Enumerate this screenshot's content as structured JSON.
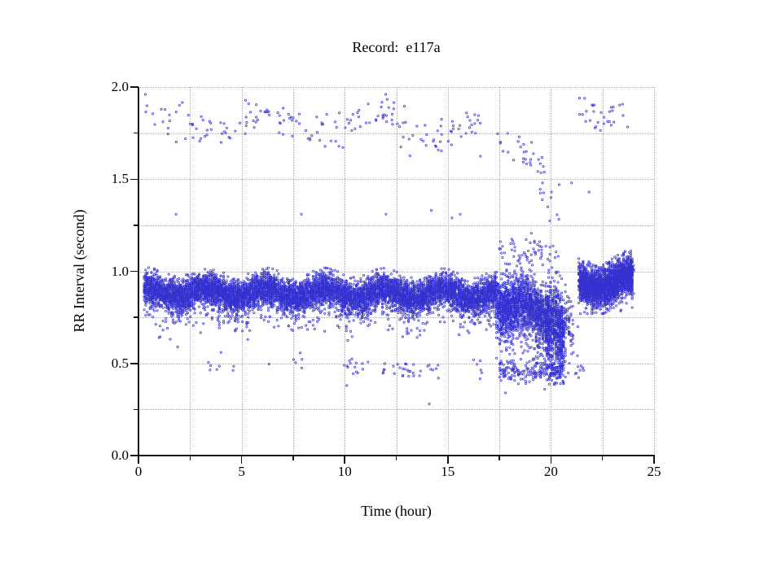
{
  "chart_data": {
    "type": "scatter",
    "title": "Record:  e117a",
    "xlabel": "Time (hour)",
    "ylabel": "RR Interval (second)",
    "xlim": [
      0,
      25
    ],
    "ylim": [
      0.0,
      2.0
    ],
    "grid": "dotted gray at every 2.5 h and 0.25 s",
    "legend": "none",
    "marker": {
      "shape": "open-circle",
      "color": "#3431d0",
      "radius_px": 1.15
    },
    "x_axis": {
      "major_ticks": [
        {
          "value": 0,
          "label": "0"
        },
        {
          "value": 5,
          "label": "5"
        },
        {
          "value": 10,
          "label": "10"
        },
        {
          "value": 15,
          "label": "15"
        },
        {
          "value": 20,
          "label": "20"
        },
        {
          "value": 25,
          "label": "25"
        }
      ],
      "minor_ticks": [
        2.5,
        7.5,
        12.5,
        17.5,
        22.5
      ]
    },
    "y_axis": {
      "major_ticks": [
        {
          "value": 0,
          "label": "0.0"
        },
        {
          "value": 0.5,
          "label": "0.5"
        },
        {
          "value": 1,
          "label": "1.0"
        },
        {
          "value": 1.5,
          "label": "1.5"
        },
        {
          "value": 2,
          "label": "2.0"
        }
      ],
      "minor_ticks": [
        0.25,
        0.75,
        1.25,
        1.75
      ]
    },
    "segments": [
      {
        "name": "main-band",
        "t": [
          0.28,
          17.35
        ],
        "n": 9000,
        "yc": [
          0.885,
          0.875
        ],
        "wave": [
          0.025,
          2.2,
          0.5
        ],
        "sigma": 0.042,
        "tail": {
          "frac": 0.045,
          "range": [
            -0.17,
            -0.05
          ]
        },
        "clip": [
          0.62,
          1.08
        ],
        "quant": 0.07
      },
      {
        "name": "episode-band",
        "t": [
          17.35,
          19.85
        ],
        "n": 1900,
        "yc": [
          0.84,
          0.78
        ],
        "wave": [
          0.03,
          3.1,
          0
        ],
        "sigma": 0.068,
        "tail": {
          "frac": 0.12,
          "range": [
            -0.22,
            -0.04
          ]
        },
        "clip": [
          0.5,
          1.12
        ],
        "quant": 0.08
      },
      {
        "name": "episode-chaos",
        "t": [
          19.8,
          20.68
        ],
        "n": 750,
        "yc": [
          0.74,
          0.66
        ],
        "wave": [
          0.02,
          5,
          1
        ],
        "sigma": 0.105,
        "tail": {
          "frac": 0.1,
          "range": [
            -0.18,
            -0.02
          ]
        },
        "clip": [
          0.39,
          1.1
        ],
        "quant": 0.09
      },
      {
        "name": "episode-upper-scatter",
        "t": [
          17.5,
          20.35
        ],
        "n": 70,
        "yc": [
          1.1,
          1.05
        ],
        "wave": [
          0.02,
          2,
          0
        ],
        "sigma": 0.06,
        "clip": [
          0.97,
          1.24
        ],
        "quant": 0.05
      },
      {
        "name": "gap-sparse",
        "t": [
          20.66,
          21.12
        ],
        "n": 48,
        "yc": [
          0.74,
          0.7
        ],
        "wave": [
          0.02,
          4,
          0
        ],
        "sigma": 0.09,
        "clip": [
          0.54,
          0.9
        ],
        "quant": 0.09
      },
      {
        "name": "evening-band",
        "t": [
          21.36,
          23.98
        ],
        "n": 2500,
        "yc": [
          0.92,
          0.95
        ],
        "wave": [
          0.028,
          2.4,
          1.2
        ],
        "sigma": 0.05,
        "tail": {
          "frac": 0.03,
          "range": [
            -0.12,
            -0.03
          ]
        },
        "clip": [
          0.77,
          1.12
        ],
        "quant": 0.07
      },
      {
        "name": "upper-band-day",
        "t": [
          0.3,
          16.6
        ],
        "n": 185,
        "yc": [
          1.81,
          1.79
        ],
        "wave": [
          0.055,
          1.15,
          0.7
        ],
        "sigma": 0.046,
        "tail": {
          "frac": 0.07,
          "range": [
            -0.14,
            -0.05
          ]
        },
        "clip": [
          1.56,
          1.96
        ]
      },
      {
        "name": "upper-descend-1",
        "t": [
          17.35,
          19.6
        ],
        "n": 26,
        "yc": [
          1.73,
          1.54
        ],
        "wave": [
          0.01,
          1,
          0
        ],
        "sigma": 0.05,
        "clip": [
          1.42,
          1.83
        ]
      },
      {
        "name": "upper-descend-2",
        "t": [
          19.35,
          20.45
        ],
        "n": 14,
        "yc": [
          1.5,
          1.27
        ],
        "wave": [
          0.01,
          1,
          0
        ],
        "sigma": 0.055,
        "clip": [
          1.18,
          1.62
        ]
      },
      {
        "name": "upper-evening-cluster",
        "t": [
          21.25,
          23.72
        ],
        "n": 30,
        "yc": [
          1.85,
          1.84
        ],
        "wave": [
          0.03,
          3,
          0
        ],
        "sigma": 0.05,
        "clip": [
          1.73,
          1.97
        ]
      },
      {
        "name": "low-band-a",
        "t": [
          3.3,
          4.7
        ],
        "n": 7,
        "yc": [
          0.5,
          0.5
        ],
        "wave": [
          0.01,
          1,
          0
        ],
        "sigma": 0.035,
        "clip": [
          0.43,
          0.58
        ]
      },
      {
        "name": "low-band-b",
        "t": [
          6.3,
          8.0
        ],
        "n": 6,
        "yc": [
          0.5,
          0.49
        ],
        "wave": [
          0.01,
          1,
          0
        ],
        "sigma": 0.04,
        "clip": [
          0.42,
          0.58
        ]
      },
      {
        "name": "low-band-c",
        "t": [
          9.95,
          11.2
        ],
        "n": 14,
        "yc": [
          0.485,
          0.48
        ],
        "wave": [
          0.005,
          1,
          0
        ],
        "sigma": 0.022,
        "clip": [
          0.43,
          0.54
        ]
      },
      {
        "name": "low-band-d",
        "t": [
          11.6,
          13.45
        ],
        "n": 22,
        "yc": [
          0.478,
          0.472
        ],
        "wave": [
          0.005,
          1,
          0
        ],
        "sigma": 0.024,
        "clip": [
          0.42,
          0.54
        ]
      },
      {
        "name": "low-band-e",
        "t": [
          13.6,
          14.75
        ],
        "n": 9,
        "yc": [
          0.48,
          0.475
        ],
        "wave": [
          0.005,
          1,
          0
        ],
        "sigma": 0.03,
        "clip": [
          0.42,
          0.55
        ]
      },
      {
        "name": "low-band-f",
        "t": [
          16.2,
          16.65
        ],
        "n": 6,
        "yc": [
          0.47,
          0.47
        ],
        "wave": [
          0.005,
          1,
          0
        ],
        "sigma": 0.03,
        "clip": [
          0.41,
          0.53
        ]
      },
      {
        "name": "low-episode-cluster",
        "t": [
          17.45,
          20.62
        ],
        "n": 200,
        "yc": [
          0.47,
          0.445
        ],
        "wave": [
          0.008,
          2,
          0
        ],
        "sigma": 0.028,
        "clip": [
          0.375,
          0.56
        ],
        "quant": 0.06
      },
      {
        "name": "low-post",
        "t": [
          20.8,
          21.6
        ],
        "n": 13,
        "yc": [
          0.49,
          0.48
        ],
        "wave": [
          0.005,
          1,
          0
        ],
        "sigma": 0.035,
        "clip": [
          0.42,
          0.56
        ]
      }
    ],
    "outliers": [
      [
        1.82,
        1.31
      ],
      [
        7.9,
        1.31
      ],
      [
        12.0,
        1.31
      ],
      [
        14.2,
        1.33
      ],
      [
        15.2,
        1.29
      ],
      [
        15.6,
        1.31
      ],
      [
        14.1,
        0.28
      ],
      [
        10.1,
        0.38
      ],
      [
        1.9,
        0.59
      ],
      [
        1.0,
        0.64
      ],
      [
        17.8,
        0.34
      ],
      [
        19.7,
        0.36
      ],
      [
        20.4,
        1.47
      ],
      [
        21.0,
        1.48
      ],
      [
        21.85,
        1.43
      ],
      [
        23.4,
        0.79
      ],
      [
        21.3,
        0.7
      ],
      [
        4.0,
        0.56
      ],
      [
        5.3,
        0.63
      ]
    ]
  }
}
